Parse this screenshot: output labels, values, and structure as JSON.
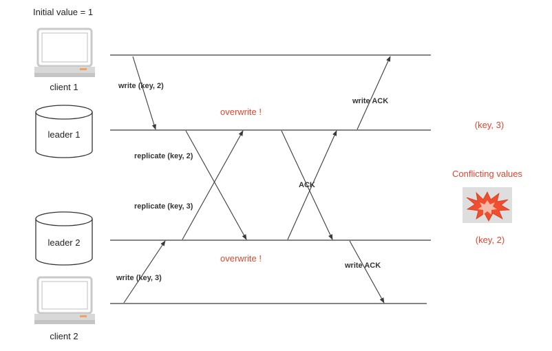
{
  "initial_value_label": "Initial value = 1",
  "nodes": {
    "client1": "client 1",
    "leader1": "leader 1",
    "leader2": "leader 2",
    "client2": "client 2"
  },
  "messages": {
    "write_c1": "write (key, 2)",
    "write_ack_top": "write ACK",
    "replicate_key2": "replicate (key, 2)",
    "replicate_key3": "replicate (key, 3)",
    "ack_middle": "ACK",
    "write_c2": "write (key, 3)",
    "write_ack_bottom": "write ACK"
  },
  "annotations": {
    "overwrite_top": "overwrite !",
    "overwrite_bottom": "overwrite !",
    "key3": "(key, 3)",
    "conflicting": "Conflicting values",
    "key2": "(key, 2)"
  },
  "colors": {
    "accent_red": "#e0452d",
    "line": "#3a3a3a",
    "node_fill": "#ffffff",
    "laptop_screen_frame": "#c9c9c9",
    "laptop_base": "#d8d8d8",
    "burst_bg": "#dedede",
    "burst_fill": "#ef4f2f"
  },
  "icons": {
    "client": "laptop-icon",
    "leader": "database-cylinder-icon",
    "conflict": "explosion-burst-icon"
  }
}
